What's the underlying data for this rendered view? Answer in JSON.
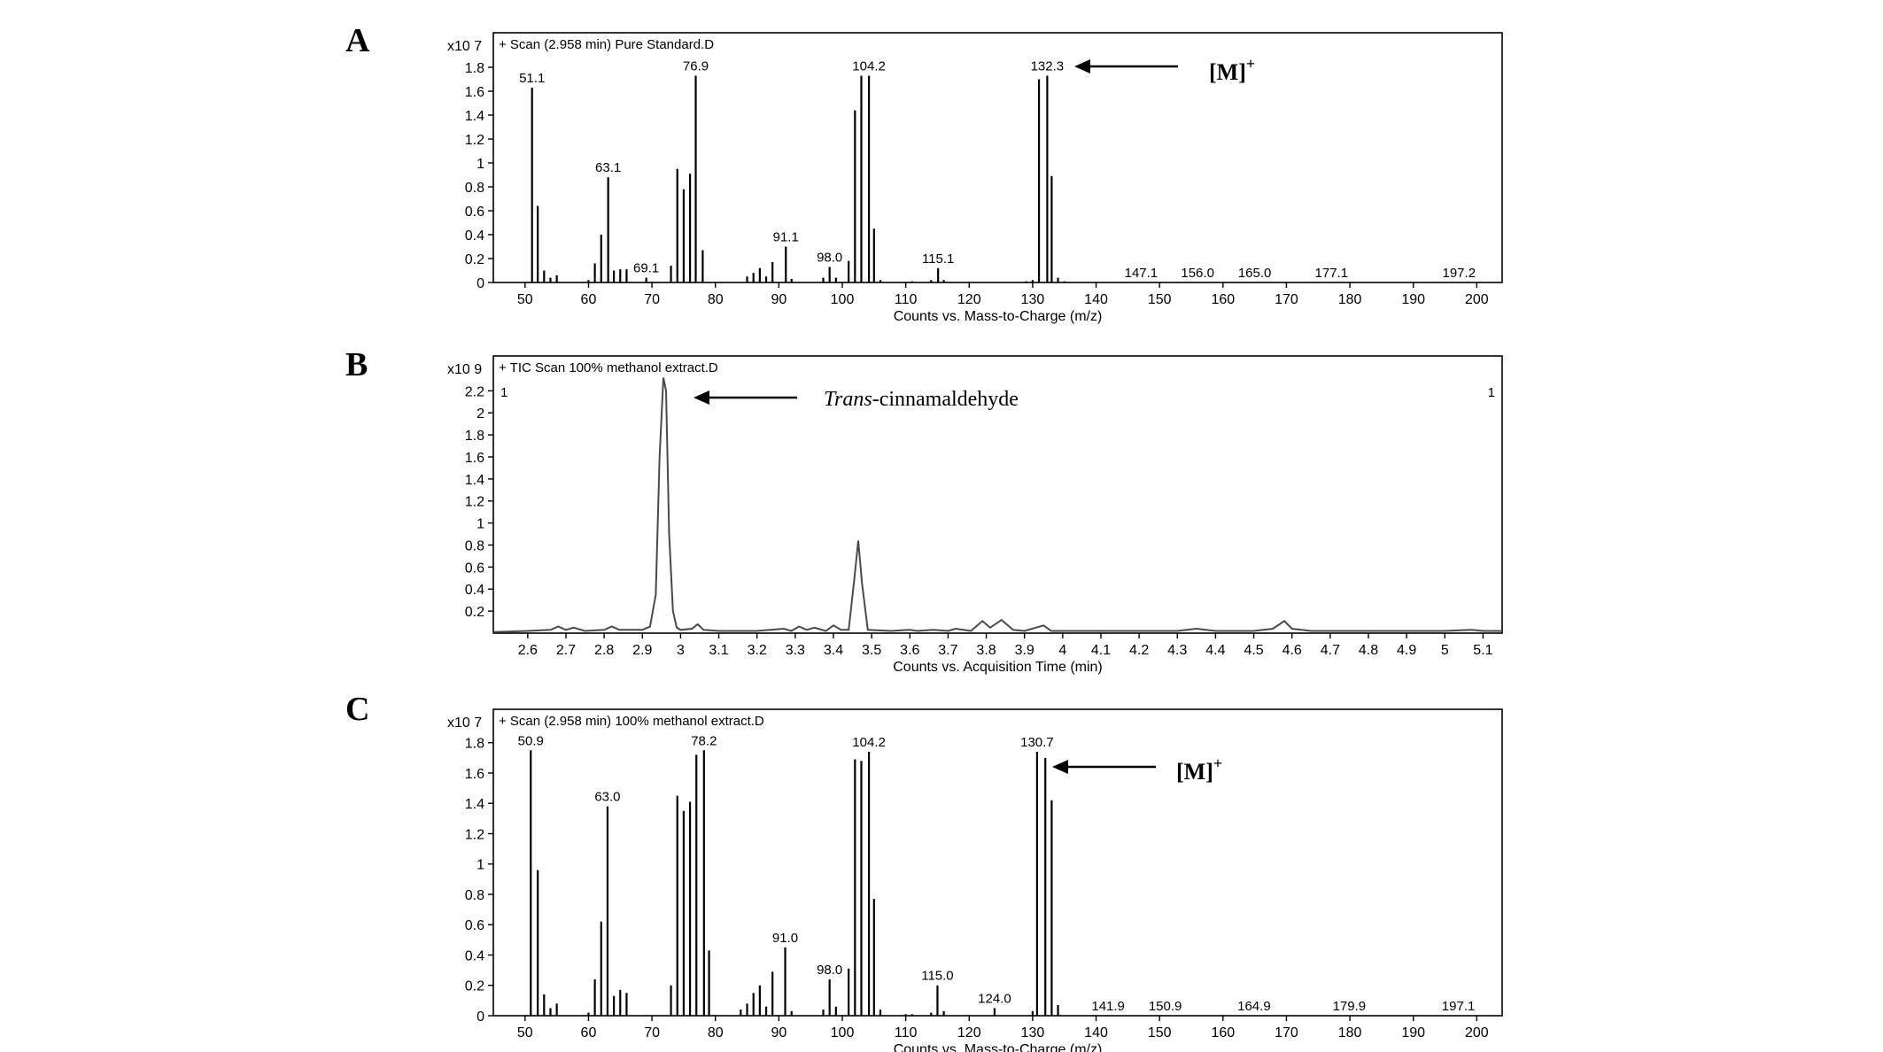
{
  "chart_data": [
    {
      "panel": "A",
      "type": "bar",
      "header": "+ Scan (2.958 min) Pure Standard.D",
      "scale_label": "x10 7",
      "xlabel": "Counts vs. Mass-to-Charge (m/z)",
      "xlim": [
        45,
        204
      ],
      "ylim": [
        0,
        2.0
      ],
      "xticks": [
        "50",
        "60",
        "70",
        "80",
        "90",
        "100",
        "110",
        "120",
        "130",
        "140",
        "150",
        "160",
        "170",
        "180",
        "190",
        "200"
      ],
      "yticks": [
        "0",
        "0.2",
        "0.4",
        "0.6",
        "0.8",
        "1",
        "1.2",
        "1.4",
        "1.6",
        "1.8"
      ],
      "peaks": [
        [
          51.1,
          1.63
        ],
        [
          52,
          0.64
        ],
        [
          53,
          0.1
        ],
        [
          54,
          0.04
        ],
        [
          55,
          0.06
        ],
        [
          60,
          0.02
        ],
        [
          61,
          0.16
        ],
        [
          62,
          0.4
        ],
        [
          63.1,
          0.88
        ],
        [
          64,
          0.1
        ],
        [
          65,
          0.11
        ],
        [
          66,
          0.11
        ],
        [
          69.1,
          0.04
        ],
        [
          73,
          0.14
        ],
        [
          74,
          0.95
        ],
        [
          75,
          0.78
        ],
        [
          76,
          0.91
        ],
        [
          76.9,
          1.73
        ],
        [
          78,
          0.27
        ],
        [
          85,
          0.05
        ],
        [
          86,
          0.08
        ],
        [
          87,
          0.12
        ],
        [
          88,
          0.05
        ],
        [
          89,
          0.17
        ],
        [
          91.1,
          0.3
        ],
        [
          92,
          0.03
        ],
        [
          97,
          0.04
        ],
        [
          98.0,
          0.13
        ],
        [
          99,
          0.04
        ],
        [
          101,
          0.18
        ],
        [
          102,
          1.44
        ],
        [
          103,
          1.73
        ],
        [
          104.2,
          1.73
        ],
        [
          105,
          0.45
        ],
        [
          106,
          0.02
        ],
        [
          111,
          0.01
        ],
        [
          114,
          0.02
        ],
        [
          115.1,
          0.12
        ],
        [
          116,
          0.02
        ],
        [
          129,
          0.01
        ],
        [
          130,
          0.02
        ],
        [
          131,
          1.7
        ],
        [
          132.3,
          1.73
        ],
        [
          133,
          0.89
        ],
        [
          134,
          0.04
        ],
        [
          135,
          0.01
        ]
      ],
      "peak_labels": [
        {
          "x": 51.1,
          "y": 1.63,
          "text": "51.1"
        },
        {
          "x": 63.1,
          "y": 0.88,
          "text": "63.1"
        },
        {
          "x": 69.1,
          "y": 0.04,
          "text": "69.1"
        },
        {
          "x": 76.9,
          "y": 1.73,
          "text": "76.9"
        },
        {
          "x": 91.1,
          "y": 0.3,
          "text": "91.1"
        },
        {
          "x": 98.0,
          "y": 0.13,
          "text": "98.0"
        },
        {
          "x": 104.2,
          "y": 1.73,
          "text": "104.2"
        },
        {
          "x": 115.1,
          "y": 0.12,
          "text": "115.1"
        },
        {
          "x": 132.3,
          "y": 1.73,
          "text": "132.3"
        },
        {
          "x": 147.1,
          "y": 0,
          "text": "147.1"
        },
        {
          "x": 156.0,
          "y": 0,
          "text": "156.0"
        },
        {
          "x": 165.0,
          "y": 0,
          "text": "165.0"
        },
        {
          "x": 177.1,
          "y": 0,
          "text": "177.1"
        },
        {
          "x": 197.2,
          "y": 0,
          "text": "197.2"
        }
      ],
      "annotation": {
        "text": "[M]",
        "superscript": "+"
      }
    },
    {
      "panel": "B",
      "type": "line",
      "header": "+ TIC Scan 100% methanol extract.D",
      "scale_label": "x10 9",
      "xlabel": "Counts vs. Acquisition Time (min)",
      "xlim": [
        2.51,
        5.15
      ],
      "ylim": [
        0,
        2.42
      ],
      "xticks": [
        "2.6",
        "2.7",
        "2.8",
        "2.9",
        "3",
        "3.1",
        "3.2",
        "3.3",
        "3.4",
        "3.5",
        "3.6",
        "3.7",
        "3.8",
        "3.9",
        "4",
        "4.1",
        "4.2",
        "4.3",
        "4.4",
        "4.5",
        "4.6",
        "4.7",
        "4.8",
        "4.9",
        "5",
        "5.1"
      ],
      "yticks": [
        "0.2",
        "0.4",
        "0.6",
        "0.8",
        "1",
        "1.2",
        "1.4",
        "1.6",
        "1.8",
        "2",
        "2.2"
      ],
      "corner_marks": [
        "1",
        "1"
      ],
      "points": [
        [
          2.51,
          0.01
        ],
        [
          2.6,
          0.02
        ],
        [
          2.66,
          0.03
        ],
        [
          2.68,
          0.06
        ],
        [
          2.7,
          0.03
        ],
        [
          2.72,
          0.05
        ],
        [
          2.75,
          0.02
        ],
        [
          2.8,
          0.03
        ],
        [
          2.82,
          0.06
        ],
        [
          2.84,
          0.03
        ],
        [
          2.9,
          0.03
        ],
        [
          2.92,
          0.06
        ],
        [
          2.935,
          0.35
        ],
        [
          2.945,
          1.6
        ],
        [
          2.955,
          2.32
        ],
        [
          2.962,
          2.2
        ],
        [
          2.97,
          0.9
        ],
        [
          2.98,
          0.2
        ],
        [
          2.99,
          0.05
        ],
        [
          3.0,
          0.03
        ],
        [
          3.03,
          0.04
        ],
        [
          3.045,
          0.08
        ],
        [
          3.06,
          0.03
        ],
        [
          3.1,
          0.02
        ],
        [
          3.2,
          0.02
        ],
        [
          3.27,
          0.04
        ],
        [
          3.29,
          0.02
        ],
        [
          3.31,
          0.06
        ],
        [
          3.33,
          0.03
        ],
        [
          3.35,
          0.05
        ],
        [
          3.38,
          0.02
        ],
        [
          3.4,
          0.07
        ],
        [
          3.42,
          0.03
        ],
        [
          3.44,
          0.03
        ],
        [
          3.455,
          0.5
        ],
        [
          3.465,
          0.84
        ],
        [
          3.475,
          0.45
        ],
        [
          3.49,
          0.03
        ],
        [
          3.55,
          0.02
        ],
        [
          3.6,
          0.03
        ],
        [
          3.62,
          0.02
        ],
        [
          3.66,
          0.03
        ],
        [
          3.7,
          0.02
        ],
        [
          3.72,
          0.04
        ],
        [
          3.76,
          0.02
        ],
        [
          3.79,
          0.11
        ],
        [
          3.81,
          0.05
        ],
        [
          3.84,
          0.12
        ],
        [
          3.87,
          0.03
        ],
        [
          3.9,
          0.02
        ],
        [
          3.95,
          0.07
        ],
        [
          3.97,
          0.02
        ],
        [
          4.05,
          0.02
        ],
        [
          4.2,
          0.02
        ],
        [
          4.3,
          0.02
        ],
        [
          4.35,
          0.04
        ],
        [
          4.4,
          0.02
        ],
        [
          4.5,
          0.02
        ],
        [
          4.55,
          0.04
        ],
        [
          4.58,
          0.11
        ],
        [
          4.6,
          0.04
        ],
        [
          4.65,
          0.02
        ],
        [
          4.8,
          0.02
        ],
        [
          5.0,
          0.02
        ],
        [
          5.07,
          0.03
        ],
        [
          5.1,
          0.02
        ],
        [
          5.15,
          0.02
        ]
      ],
      "annotation": {
        "italic": "Trans",
        "rest": "-cinnamaldehyde",
        "peak_x": 2.955,
        "peak_y": 2.32
      }
    },
    {
      "panel": "C",
      "type": "bar",
      "header": "+ Scan (2.958 min) 100% methanol extract.D",
      "scale_label": "x10 7",
      "xlabel": "Counts vs. Mass-to-Charge (m/z)",
      "xlim": [
        45,
        204
      ],
      "ylim": [
        0,
        1.95
      ],
      "xticks": [
        "50",
        "60",
        "70",
        "80",
        "90",
        "100",
        "110",
        "120",
        "130",
        "140",
        "150",
        "160",
        "170",
        "180",
        "190",
        "200"
      ],
      "yticks": [
        "0",
        "0.2",
        "0.4",
        "0.6",
        "0.8",
        "1",
        "1.2",
        "1.4",
        "1.6",
        "1.8"
      ],
      "peaks": [
        [
          50.9,
          1.75
        ],
        [
          52,
          0.96
        ],
        [
          53,
          0.14
        ],
        [
          54,
          0.05
        ],
        [
          55,
          0.08
        ],
        [
          60,
          0.02
        ],
        [
          61,
          0.24
        ],
        [
          62,
          0.62
        ],
        [
          63.0,
          1.38
        ],
        [
          64,
          0.13
        ],
        [
          65,
          0.17
        ],
        [
          66,
          0.15
        ],
        [
          73,
          0.2
        ],
        [
          74,
          1.45
        ],
        [
          75,
          1.35
        ],
        [
          76,
          1.41
        ],
        [
          77,
          1.72
        ],
        [
          78.2,
          1.75
        ],
        [
          79,
          0.43
        ],
        [
          84,
          0.04
        ],
        [
          85,
          0.08
        ],
        [
          86,
          0.15
        ],
        [
          87,
          0.2
        ],
        [
          88,
          0.06
        ],
        [
          89,
          0.29
        ],
        [
          91.0,
          0.45
        ],
        [
          92,
          0.03
        ],
        [
          97,
          0.04
        ],
        [
          98.0,
          0.24
        ],
        [
          99,
          0.06
        ],
        [
          101,
          0.31
        ],
        [
          102,
          1.69
        ],
        [
          103,
          1.68
        ],
        [
          104.2,
          1.74
        ],
        [
          105,
          0.77
        ],
        [
          106,
          0.04
        ],
        [
          110,
          0.01
        ],
        [
          111,
          0.01
        ],
        [
          114,
          0.02
        ],
        [
          115.0,
          0.2
        ],
        [
          116,
          0.03
        ],
        [
          124.0,
          0.05
        ],
        [
          130,
          0.03
        ],
        [
          130.7,
          1.74
        ],
        [
          132,
          1.7
        ],
        [
          133,
          1.42
        ],
        [
          134,
          0.07
        ]
      ],
      "peak_labels": [
        {
          "x": 50.9,
          "y": 1.75,
          "text": "50.9"
        },
        {
          "x": 63.0,
          "y": 1.38,
          "text": "63.0"
        },
        {
          "x": 78.2,
          "y": 1.75,
          "text": "78.2"
        },
        {
          "x": 91.0,
          "y": 0.45,
          "text": "91.0"
        },
        {
          "x": 98.0,
          "y": 0.24,
          "text": "98.0"
        },
        {
          "x": 104.2,
          "y": 1.74,
          "text": "104.2"
        },
        {
          "x": 115.0,
          "y": 0.2,
          "text": "115.0"
        },
        {
          "x": 124.0,
          "y": 0.05,
          "text": "124.0"
        },
        {
          "x": 130.7,
          "y": 1.74,
          "text": "130.7"
        },
        {
          "x": 141.9,
          "y": 0,
          "text": "141.9"
        },
        {
          "x": 150.9,
          "y": 0,
          "text": "150.9"
        },
        {
          "x": 164.9,
          "y": 0,
          "text": "164.9"
        },
        {
          "x": 179.9,
          "y": 0,
          "text": "179.9"
        },
        {
          "x": 197.1,
          "y": 0,
          "text": "197.1"
        }
      ],
      "annotation": {
        "text": "[M]",
        "superscript": "+"
      }
    }
  ]
}
